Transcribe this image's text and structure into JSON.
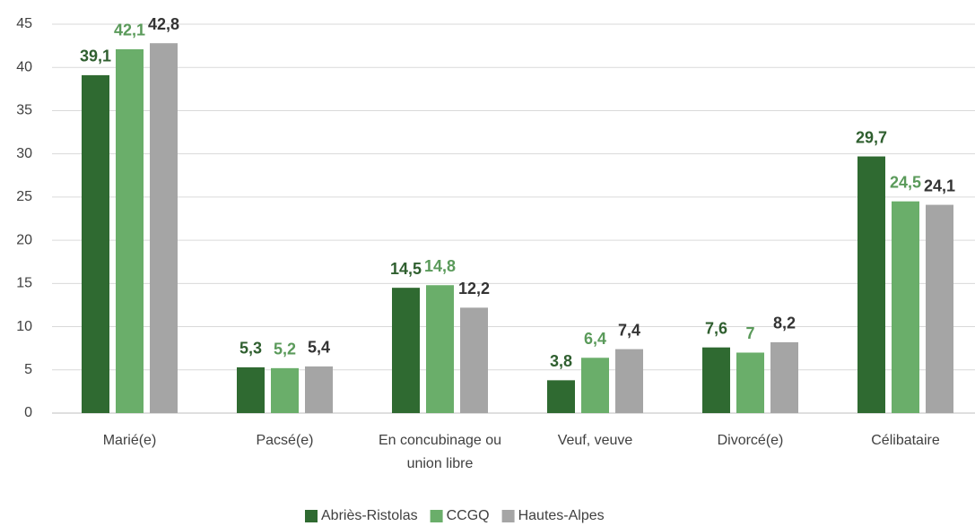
{
  "chart_data": {
    "type": "bar",
    "categories": [
      "Marié(e)",
      "Pacsé(e)",
      "En concubinage ou union libre",
      "Veuf, veuve",
      "Divorcé(e)",
      "Célibataire"
    ],
    "series": [
      {
        "name": "Abriès-Ristolas",
        "color": "#2f6a31",
        "label_color": "#2f5f2f",
        "values": [
          39.1,
          5.3,
          14.5,
          3.8,
          7.6,
          29.7
        ],
        "value_labels": [
          "39,1",
          "5,3",
          "14,5",
          "3,8",
          "7,6",
          "29,7"
        ]
      },
      {
        "name": "CCGQ",
        "color": "#6aae6a",
        "label_color": "#5a9a5a",
        "values": [
          42.1,
          5.2,
          14.8,
          6.4,
          7,
          24.5
        ],
        "value_labels": [
          "42,1",
          "5,2",
          "14,8",
          "6,4",
          "7",
          "24,5"
        ]
      },
      {
        "name": "Hautes-Alpes",
        "color": "#a5a5a5",
        "label_color": "#333333",
        "values": [
          42.8,
          5.4,
          12.2,
          7.4,
          8.2,
          24.1
        ],
        "value_labels": [
          "42,8",
          "5,4",
          "12,2",
          "7,4",
          "8,2",
          "24,1"
        ]
      }
    ],
    "ylim": [
      0,
      45
    ],
    "yticks": [
      0,
      5,
      10,
      15,
      20,
      25,
      30,
      35,
      40,
      45
    ],
    "grid": true,
    "legend": "bottom"
  }
}
